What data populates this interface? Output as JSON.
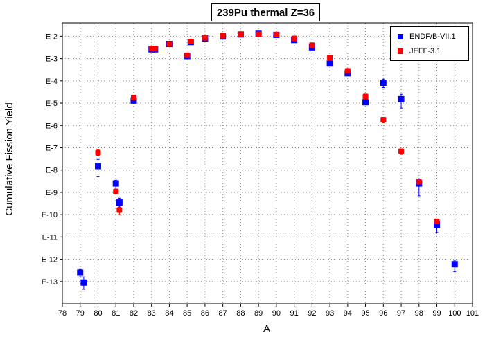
{
  "chart_data": {
    "type": "scatter",
    "title": "239Pu thermal Z=36",
    "xlabel": "A",
    "ylabel": "Cumulative Fission Yield",
    "xlim": [
      78,
      101
    ],
    "ylim": [
      1e-14,
      0.04
    ],
    "yscale": "log",
    "grid": true,
    "legend_position": "top-right",
    "x_ticks": [
      "78",
      "79",
      "80",
      "81",
      "82",
      "83",
      "84",
      "85",
      "86",
      "87",
      "88",
      "89",
      "90",
      "91",
      "92",
      "93",
      "94",
      "95",
      "96",
      "97",
      "98",
      "99",
      "100",
      "101"
    ],
    "y_ticks": [
      "E-2",
      "E-3",
      "E-4",
      "E-5",
      "E-6",
      "E-7",
      "E-8",
      "E-9",
      "E-10",
      "E-11",
      "E-12",
      "E-13"
    ],
    "series": [
      {
        "name": "ENDF/B-VII.1",
        "color": "#0000ff",
        "marker": "square",
        "points": [
          {
            "x": 79.0,
            "y": 2.5e-13,
            "err": [
              1.6e-13,
              3.5e-13
            ]
          },
          {
            "x": 79.2,
            "y": 9e-14,
            "err": [
              4.5e-14,
              1.6e-13
            ]
          },
          {
            "x": 80.0,
            "y": 1.5e-08,
            "err": [
              5e-09,
              3e-08
            ]
          },
          {
            "x": 81.0,
            "y": 2.5e-09,
            "err": [
              1.4e-09,
              3.5e-09
            ]
          },
          {
            "x": 81.2,
            "y": 3.5e-10,
            "err": [
              2.2e-10,
              5.5e-10
            ]
          },
          {
            "x": 82.0,
            "y": 1.3e-05
          },
          {
            "x": 83.0,
            "y": 0.0026
          },
          {
            "x": 83.2,
            "y": 0.0026
          },
          {
            "x": 84.0,
            "y": 0.0045
          },
          {
            "x": 85.0,
            "y": 0.0013
          },
          {
            "x": 85.2,
            "y": 0.0055
          },
          {
            "x": 86.0,
            "y": 0.008
          },
          {
            "x": 87.0,
            "y": 0.0098
          },
          {
            "x": 88.0,
            "y": 0.012
          },
          {
            "x": 89.0,
            "y": 0.013
          },
          {
            "x": 90.0,
            "y": 0.0115
          },
          {
            "x": 91.0,
            "y": 0.0068
          },
          {
            "x": 92.0,
            "y": 0.0032
          },
          {
            "x": 93.0,
            "y": 0.0006
          },
          {
            "x": 94.0,
            "y": 0.00022
          },
          {
            "x": 95.0,
            "y": 1.1e-05
          },
          {
            "x": 96.0,
            "y": 8e-05,
            "err": [
              5e-05,
              0.00012
            ]
          },
          {
            "x": 97.0,
            "y": 1.5e-05,
            "err": [
              6e-06,
              2.5e-05
            ]
          },
          {
            "x": 98.0,
            "y": 2.5e-09,
            "err": [
              7e-10,
              4e-09
            ]
          },
          {
            "x": 99.0,
            "y": 3.5e-11,
            "err": [
              1.6e-11,
              5.5e-11
            ]
          },
          {
            "x": 100.0,
            "y": 6e-13,
            "err": [
              2.8e-13,
              9e-13
            ]
          }
        ]
      },
      {
        "name": "JEFF-3.1",
        "color": "#ff0000",
        "marker": "square",
        "points": [
          {
            "x": 80.0,
            "y": 6e-08,
            "err": [
              4.5e-08,
              8e-08
            ]
          },
          {
            "x": 81.0,
            "y": 1.1e-09
          },
          {
            "x": 81.2,
            "y": 1.6e-10,
            "err": [
              1e-10,
              2.2e-10
            ]
          },
          {
            "x": 82.0,
            "y": 1.8e-05
          },
          {
            "x": 83.0,
            "y": 0.0028
          },
          {
            "x": 83.2,
            "y": 0.0028
          },
          {
            "x": 84.0,
            "y": 0.0045
          },
          {
            "x": 85.0,
            "y": 0.0014
          },
          {
            "x": 85.2,
            "y": 0.0058
          },
          {
            "x": 86.0,
            "y": 0.0085
          },
          {
            "x": 87.0,
            "y": 0.0105
          },
          {
            "x": 88.0,
            "y": 0.0125
          },
          {
            "x": 89.0,
            "y": 0.0125
          },
          {
            "x": 90.0,
            "y": 0.012
          },
          {
            "x": 91.0,
            "y": 0.008
          },
          {
            "x": 92.0,
            "y": 0.004
          },
          {
            "x": 93.0,
            "y": 0.0011
          },
          {
            "x": 94.0,
            "y": 0.00028,
            "err": [
              0.00018,
              0.00036
            ]
          },
          {
            "x": 95.0,
            "y": 2e-05
          },
          {
            "x": 96.0,
            "y": 1.8e-06,
            "err": [
              1.3e-06,
              2.3e-06
            ]
          },
          {
            "x": 97.0,
            "y": 7e-08,
            "err": [
              5e-08,
              9e-08
            ]
          },
          {
            "x": 98.0,
            "y": 3e-09
          },
          {
            "x": 99.0,
            "y": 5e-11
          }
        ]
      }
    ]
  }
}
